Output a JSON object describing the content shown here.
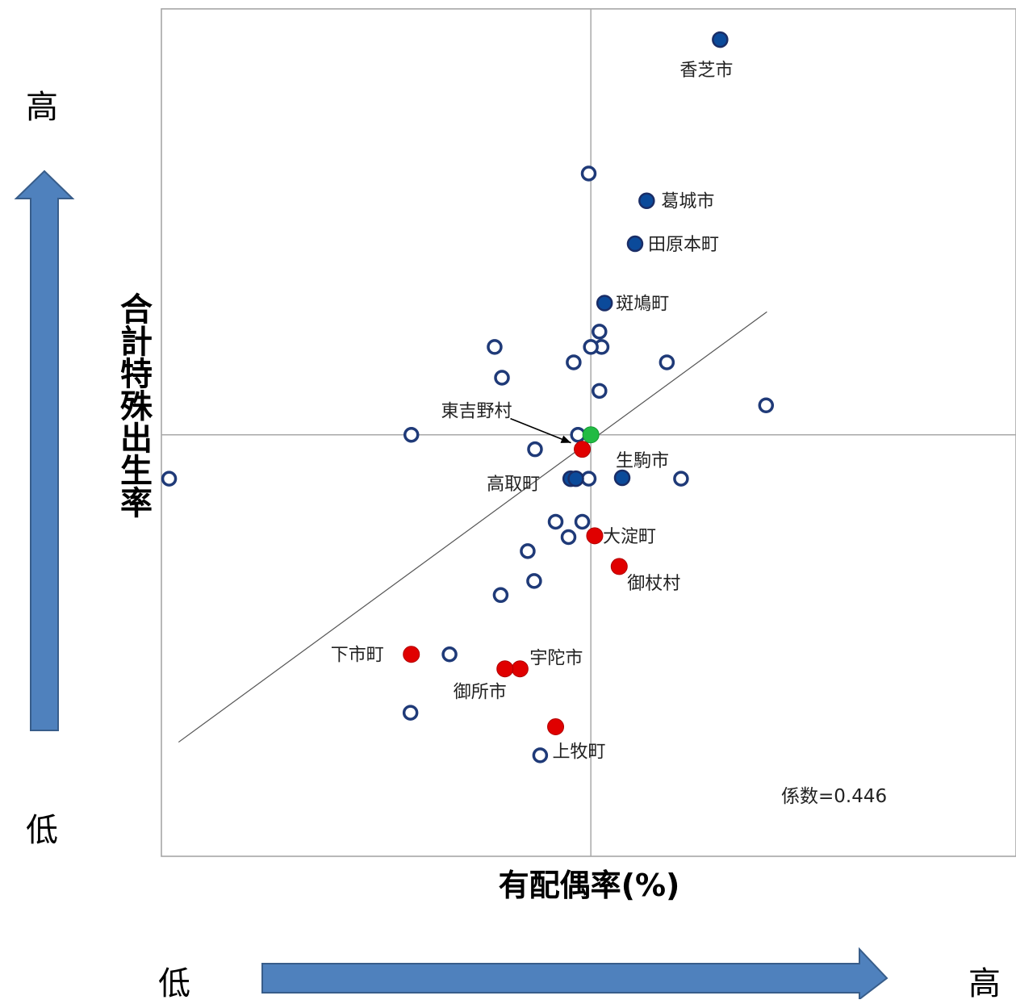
{
  "chart_data": {
    "type": "scatter",
    "xlabel": "有配偶率(%)",
    "ylabel": "合計特殊出生率",
    "annotation": "係数=0.446",
    "y_axis_high": "高",
    "y_axis_low": "低",
    "x_axis_low": "低",
    "x_axis_high": "高",
    "grid": false,
    "colors": {
      "open_marker": "#1f3a78",
      "blue_filled": "#0b4a9a",
      "red_filled": "#e00000",
      "green_filled": "#22bb44",
      "arrow_fill": "#4f81bd",
      "arrow_stroke": "#385d8a"
    },
    "open_points": [
      {
        "x": -0.05,
        "y": 5.95
      },
      {
        "x": -2.24,
        "y": 2.0
      },
      {
        "x": -2.07,
        "y": 1.3
      },
      {
        "x": -0.4,
        "y": 1.65
      },
      {
        "x": 0.2,
        "y": 2.35
      },
      {
        "x": 0.25,
        "y": 2.0
      },
      {
        "x": 0.0,
        "y": 2.0
      },
      {
        "x": 1.77,
        "y": 1.65
      },
      {
        "x": 0.2,
        "y": 1.0
      },
      {
        "x": 4.08,
        "y": 0.67
      },
      {
        "x": -4.18,
        "y": 0.0
      },
      {
        "x": -0.3,
        "y": 0.0
      },
      {
        "x": -1.3,
        "y": -0.33
      },
      {
        "x": -9.82,
        "y": -1.0
      },
      {
        "x": -0.05,
        "y": -1.0
      },
      {
        "x": 2.1,
        "y": -1.0
      },
      {
        "x": -0.82,
        "y": -1.98
      },
      {
        "x": -0.2,
        "y": -1.98
      },
      {
        "x": -0.52,
        "y": -2.33
      },
      {
        "x": -1.47,
        "y": -2.65
      },
      {
        "x": -1.32,
        "y": -3.33
      },
      {
        "x": -2.1,
        "y": -3.65
      },
      {
        "x": -3.29,
        "y": -5.0
      },
      {
        "x": -4.2,
        "y": -6.33
      },
      {
        "x": -1.18,
        "y": -7.3
      }
    ],
    "blue_points": [
      {
        "x": 3.01,
        "y": 9.0,
        "label": "香芝市"
      },
      {
        "x": 1.3,
        "y": 5.33,
        "label": "葛城市"
      },
      {
        "x": 1.03,
        "y": 4.35,
        "label": "田原本町"
      },
      {
        "x": 0.32,
        "y": 3.0,
        "label": "斑鳩町"
      },
      {
        "x": 0.73,
        "y": -0.98,
        "label": "生駒市"
      },
      {
        "x": -0.47,
        "y": -1.0,
        "label": "高取町"
      },
      {
        "x": -0.35,
        "y": -1.0,
        "label": ""
      }
    ],
    "red_points": [
      {
        "x": -0.2,
        "y": -0.33,
        "label": "東吉野村"
      },
      {
        "x": 0.09,
        "y": -2.3,
        "label": "大淀町"
      },
      {
        "x": 0.66,
        "y": -3.0,
        "label": "御杖村"
      },
      {
        "x": -4.18,
        "y": -5.0,
        "label": "下市町"
      },
      {
        "x": -1.65,
        "y": -5.33,
        "label": "宇陀市"
      },
      {
        "x": -2.0,
        "y": -5.33,
        "label": "御所市"
      },
      {
        "x": -0.82,
        "y": -6.65,
        "label": "上牧町"
      }
    ],
    "green_points": [
      {
        "x": 0.0,
        "y": 0.0
      }
    ],
    "trend_line": [
      [
        -9.6,
        -7.0
      ],
      [
        4.1,
        2.8
      ]
    ],
    "xlim": [
      -10.0,
      9.9
    ],
    "ylim": [
      -9.6,
      9.7
    ]
  }
}
